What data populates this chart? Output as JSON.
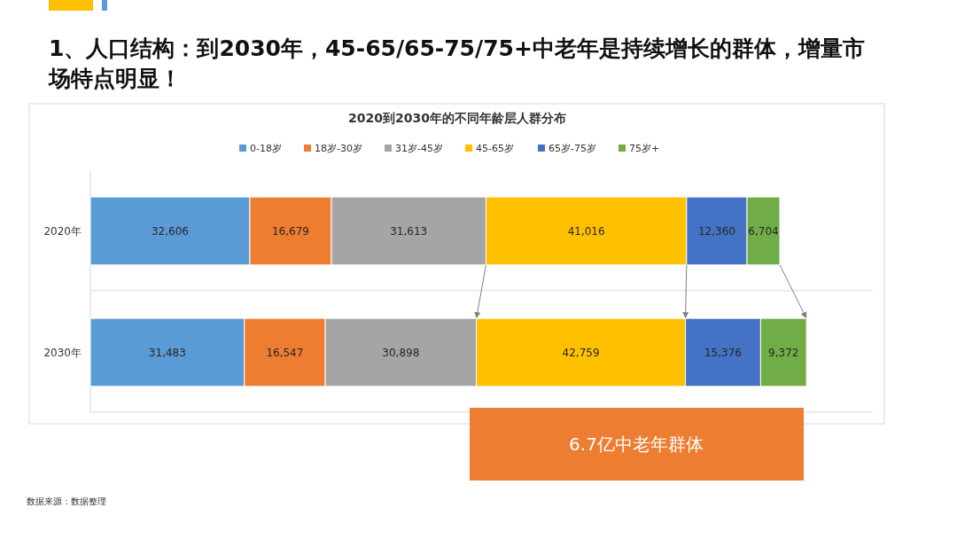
{
  "chart_data": {
    "type": "bar",
    "orientation": "horizontal",
    "stacked": true,
    "title": "1、人口结构：到2030年，45-65/65-75/75+中老年是持续增长的群体，增量市场特点明显！",
    "subtitle": "2020到2030年的不同年龄层人群分布",
    "categories": [
      "2020年",
      "2030年"
    ],
    "series": [
      {
        "name": "0-18岁",
        "color": "#5b9bd5",
        "values": [
          32606,
          31483
        ],
        "value_labels": [
          "32,606",
          "31,483"
        ]
      },
      {
        "name": "18岁-30岁",
        "color": "#ed7d31",
        "values": [
          16679,
          16547
        ],
        "value_labels": [
          "16,679",
          "16,547"
        ]
      },
      {
        "name": "31岁-45岁",
        "color": "#a5a5a5",
        "values": [
          31613,
          30898
        ],
        "value_labels": [
          "31,613",
          "30,898"
        ]
      },
      {
        "name": "45-65岁",
        "color": "#ffc000",
        "values": [
          41016,
          42759
        ],
        "value_labels": [
          "41,016",
          "42,759"
        ]
      },
      {
        "name": "65岁-75岁",
        "color": "#4472c4",
        "values": [
          12360,
          15376
        ],
        "value_labels": [
          "12,360",
          "15,376"
        ]
      },
      {
        "name": "75岁+",
        "color": "#70ad47",
        "values": [
          6704,
          9372
        ],
        "value_labels": [
          "6,704",
          "9,372"
        ]
      }
    ],
    "xlim": [
      0,
      160000
    ],
    "tick_labels": "y",
    "legend": "top",
    "annotations": [
      "6.7亿中老年群体",
      "数据来源：数据整理"
    ]
  }
}
